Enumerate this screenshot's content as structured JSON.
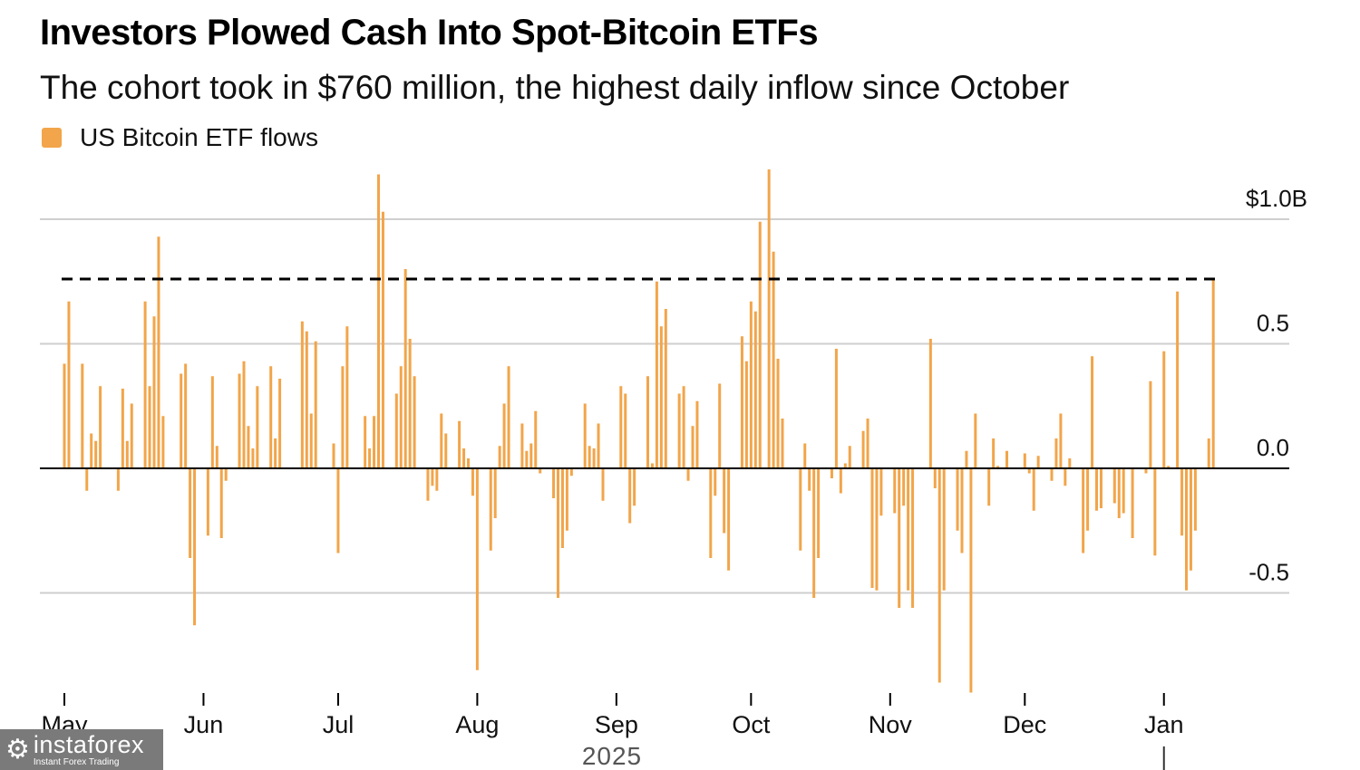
{
  "title": "Investors Plowed Cash Into Spot-Bitcoin ETFs",
  "subtitle": "The cohort took in $760 million, the highest daily inflow since October",
  "watermark": {
    "brand": "instaforex",
    "tagline": "Instant Forex Trading",
    "icon": "gear-person-icon"
  },
  "chart_data": {
    "type": "bar",
    "title": "Investors Plowed Cash Into Spot-Bitcoin ETFs",
    "subtitle": "The cohort took in $760 million, the highest daily inflow since October",
    "legend": [
      {
        "name": "US Bitcoin ETF flows",
        "color": "#f2a54a"
      }
    ],
    "legend_position": "top-left",
    "xlabel": "2025",
    "ylabel": "",
    "x_unit": "days since May 1",
    "ylim": [
      -0.9,
      1.2
    ],
    "y_ticks": [
      {
        "value": 1.0,
        "label": "$1.0B"
      },
      {
        "value": 0.5,
        "label": "0.5"
      },
      {
        "value": 0.0,
        "label": "0.0"
      },
      {
        "value": -0.5,
        "label": "-0.5"
      }
    ],
    "x_ticks": [
      {
        "day": 0,
        "label": "May"
      },
      {
        "day": 31,
        "label": "Jun"
      },
      {
        "day": 61,
        "label": "Jul"
      },
      {
        "day": 92,
        "label": "Aug"
      },
      {
        "day": 123,
        "label": "Sep"
      },
      {
        "day": 153,
        "label": "Oct"
      },
      {
        "day": 184,
        "label": "Nov"
      },
      {
        "day": 214,
        "label": "Dec"
      },
      {
        "day": 245,
        "label": "Jan"
      }
    ],
    "year_label": "2025",
    "grid": true,
    "reference_line": {
      "value": 0.76,
      "style": "dashed",
      "color": "#000000"
    },
    "bar_color": "#f2a54a",
    "series": [
      {
        "name": "US Bitcoin ETF flows",
        "points": [
          {
            "day": 0,
            "v": 0.42
          },
          {
            "day": 1,
            "v": 0.67
          },
          {
            "day": 4,
            "v": 0.42
          },
          {
            "day": 5,
            "v": -0.09
          },
          {
            "day": 6,
            "v": 0.14
          },
          {
            "day": 7,
            "v": 0.11
          },
          {
            "day": 8,
            "v": 0.33
          },
          {
            "day": 12,
            "v": -0.09
          },
          {
            "day": 13,
            "v": 0.32
          },
          {
            "day": 14,
            "v": 0.11
          },
          {
            "day": 15,
            "v": 0.26
          },
          {
            "day": 18,
            "v": 0.67
          },
          {
            "day": 19,
            "v": 0.33
          },
          {
            "day": 20,
            "v": 0.61
          },
          {
            "day": 21,
            "v": 0.93
          },
          {
            "day": 22,
            "v": 0.21
          },
          {
            "day": 26,
            "v": 0.38
          },
          {
            "day": 27,
            "v": 0.42
          },
          {
            "day": 28,
            "v": -0.36
          },
          {
            "day": 29,
            "v": -0.63
          },
          {
            "day": 32,
            "v": -0.27
          },
          {
            "day": 33,
            "v": 0.37
          },
          {
            "day": 34,
            "v": 0.09
          },
          {
            "day": 35,
            "v": -0.28
          },
          {
            "day": 36,
            "v": -0.05
          },
          {
            "day": 39,
            "v": 0.38
          },
          {
            "day": 40,
            "v": 0.43
          },
          {
            "day": 41,
            "v": 0.17
          },
          {
            "day": 42,
            "v": 0.08
          },
          {
            "day": 43,
            "v": 0.33
          },
          {
            "day": 46,
            "v": 0.41
          },
          {
            "day": 47,
            "v": 0.12
          },
          {
            "day": 48,
            "v": 0.36
          },
          {
            "day": 53,
            "v": 0.59
          },
          {
            "day": 54,
            "v": 0.55
          },
          {
            "day": 55,
            "v": 0.22
          },
          {
            "day": 56,
            "v": 0.51
          },
          {
            "day": 60,
            "v": 0.1
          },
          {
            "day": 61,
            "v": -0.34
          },
          {
            "day": 62,
            "v": 0.41
          },
          {
            "day": 63,
            "v": 0.57
          },
          {
            "day": 67,
            "v": 0.21
          },
          {
            "day": 68,
            "v": 0.08
          },
          {
            "day": 69,
            "v": 0.21
          },
          {
            "day": 70,
            "v": 1.18
          },
          {
            "day": 71,
            "v": 1.03
          },
          {
            "day": 74,
            "v": 0.3
          },
          {
            "day": 75,
            "v": 0.41
          },
          {
            "day": 76,
            "v": 0.8
          },
          {
            "day": 77,
            "v": 0.52
          },
          {
            "day": 78,
            "v": 0.37
          },
          {
            "day": 81,
            "v": -0.13
          },
          {
            "day": 82,
            "v": -0.07
          },
          {
            "day": 83,
            "v": -0.09
          },
          {
            "day": 84,
            "v": 0.22
          },
          {
            "day": 85,
            "v": 0.14
          },
          {
            "day": 88,
            "v": 0.19
          },
          {
            "day": 89,
            "v": 0.08
          },
          {
            "day": 90,
            "v": 0.04
          },
          {
            "day": 91,
            "v": -0.11
          },
          {
            "day": 92,
            "v": -0.81
          },
          {
            "day": 95,
            "v": -0.33
          },
          {
            "day": 96,
            "v": -0.2
          },
          {
            "day": 97,
            "v": 0.09
          },
          {
            "day": 98,
            "v": 0.26
          },
          {
            "day": 99,
            "v": 0.41
          },
          {
            "day": 102,
            "v": 0.18
          },
          {
            "day": 103,
            "v": 0.07
          },
          {
            "day": 104,
            "v": 0.1
          },
          {
            "day": 105,
            "v": 0.23
          },
          {
            "day": 106,
            "v": -0.02
          },
          {
            "day": 109,
            "v": -0.12
          },
          {
            "day": 110,
            "v": -0.52
          },
          {
            "day": 111,
            "v": -0.32
          },
          {
            "day": 112,
            "v": -0.25
          },
          {
            "day": 113,
            "v": -0.03
          },
          {
            "day": 116,
            "v": 0.26
          },
          {
            "day": 117,
            "v": 0.09
          },
          {
            "day": 118,
            "v": 0.08
          },
          {
            "day": 119,
            "v": 0.18
          },
          {
            "day": 120,
            "v": -0.13
          },
          {
            "day": 124,
            "v": 0.33
          },
          {
            "day": 125,
            "v": 0.3
          },
          {
            "day": 126,
            "v": -0.22
          },
          {
            "day": 127,
            "v": -0.15
          },
          {
            "day": 130,
            "v": 0.37
          },
          {
            "day": 131,
            "v": 0.02
          },
          {
            "day": 132,
            "v": 0.75
          },
          {
            "day": 133,
            "v": 0.57
          },
          {
            "day": 134,
            "v": 0.64
          },
          {
            "day": 137,
            "v": 0.3
          },
          {
            "day": 138,
            "v": 0.33
          },
          {
            "day": 139,
            "v": -0.05
          },
          {
            "day": 140,
            "v": 0.17
          },
          {
            "day": 141,
            "v": 0.27
          },
          {
            "day": 144,
            "v": -0.36
          },
          {
            "day": 145,
            "v": -0.11
          },
          {
            "day": 146,
            "v": 0.34
          },
          {
            "day": 147,
            "v": -0.26
          },
          {
            "day": 148,
            "v": -0.41
          },
          {
            "day": 151,
            "v": 0.53
          },
          {
            "day": 152,
            "v": 0.43
          },
          {
            "day": 153,
            "v": 0.67
          },
          {
            "day": 154,
            "v": 0.63
          },
          {
            "day": 155,
            "v": 0.99
          },
          {
            "day": 157,
            "v": 1.2
          },
          {
            "day": 158,
            "v": 0.87
          },
          {
            "day": 159,
            "v": 0.44
          },
          {
            "day": 160,
            "v": 0.2
          },
          {
            "day": 164,
            "v": -0.33
          },
          {
            "day": 165,
            "v": 0.1
          },
          {
            "day": 166,
            "v": -0.09
          },
          {
            "day": 167,
            "v": -0.52
          },
          {
            "day": 168,
            "v": -0.36
          },
          {
            "day": 171,
            "v": -0.04
          },
          {
            "day": 172,
            "v": 0.48
          },
          {
            "day": 173,
            "v": -0.1
          },
          {
            "day": 174,
            "v": 0.02
          },
          {
            "day": 175,
            "v": 0.09
          },
          {
            "day": 178,
            "v": 0.15
          },
          {
            "day": 179,
            "v": 0.2
          },
          {
            "day": 180,
            "v": -0.48
          },
          {
            "day": 181,
            "v": -0.49
          },
          {
            "day": 182,
            "v": -0.19
          },
          {
            "day": 185,
            "v": -0.18
          },
          {
            "day": 186,
            "v": -0.56
          },
          {
            "day": 187,
            "v": -0.15
          },
          {
            "day": 188,
            "v": -0.49
          },
          {
            "day": 189,
            "v": -0.56
          },
          {
            "day": 193,
            "v": 0.52
          },
          {
            "day": 194,
            "v": -0.08
          },
          {
            "day": 195,
            "v": -0.86
          },
          {
            "day": 196,
            "v": -0.49
          },
          {
            "day": 199,
            "v": -0.25
          },
          {
            "day": 200,
            "v": -0.34
          },
          {
            "day": 201,
            "v": 0.07
          },
          {
            "day": 202,
            "v": -0.9
          },
          {
            "day": 203,
            "v": 0.22
          },
          {
            "day": 206,
            "v": -0.15
          },
          {
            "day": 207,
            "v": 0.12
          },
          {
            "day": 208,
            "v": 0.01
          },
          {
            "day": 210,
            "v": 0.07
          },
          {
            "day": 214,
            "v": 0.06
          },
          {
            "day": 215,
            "v": -0.02
          },
          {
            "day": 216,
            "v": -0.17
          },
          {
            "day": 217,
            "v": 0.05
          },
          {
            "day": 220,
            "v": -0.05
          },
          {
            "day": 221,
            "v": 0.12
          },
          {
            "day": 222,
            "v": 0.22
          },
          {
            "day": 223,
            "v": -0.07
          },
          {
            "day": 224,
            "v": 0.04
          },
          {
            "day": 227,
            "v": -0.34
          },
          {
            "day": 228,
            "v": -0.25
          },
          {
            "day": 229,
            "v": 0.45
          },
          {
            "day": 230,
            "v": -0.17
          },
          {
            "day": 231,
            "v": -0.16
          },
          {
            "day": 234,
            "v": -0.14
          },
          {
            "day": 235,
            "v": -0.2
          },
          {
            "day": 236,
            "v": -0.18
          },
          {
            "day": 238,
            "v": -0.28
          },
          {
            "day": 241,
            "v": -0.02
          },
          {
            "day": 242,
            "v": 0.35
          },
          {
            "day": 243,
            "v": -0.35
          },
          {
            "day": 245,
            "v": 0.47
          },
          {
            "day": 246,
            "v": 0.01
          },
          {
            "day": 248,
            "v": 0.71
          },
          {
            "day": 249,
            "v": -0.27
          },
          {
            "day": 250,
            "v": -0.49
          },
          {
            "day": 251,
            "v": -0.41
          },
          {
            "day": 252,
            "v": -0.25
          },
          {
            "day": 255,
            "v": 0.12
          },
          {
            "day": 256,
            "v": 0.76
          }
        ]
      }
    ]
  }
}
